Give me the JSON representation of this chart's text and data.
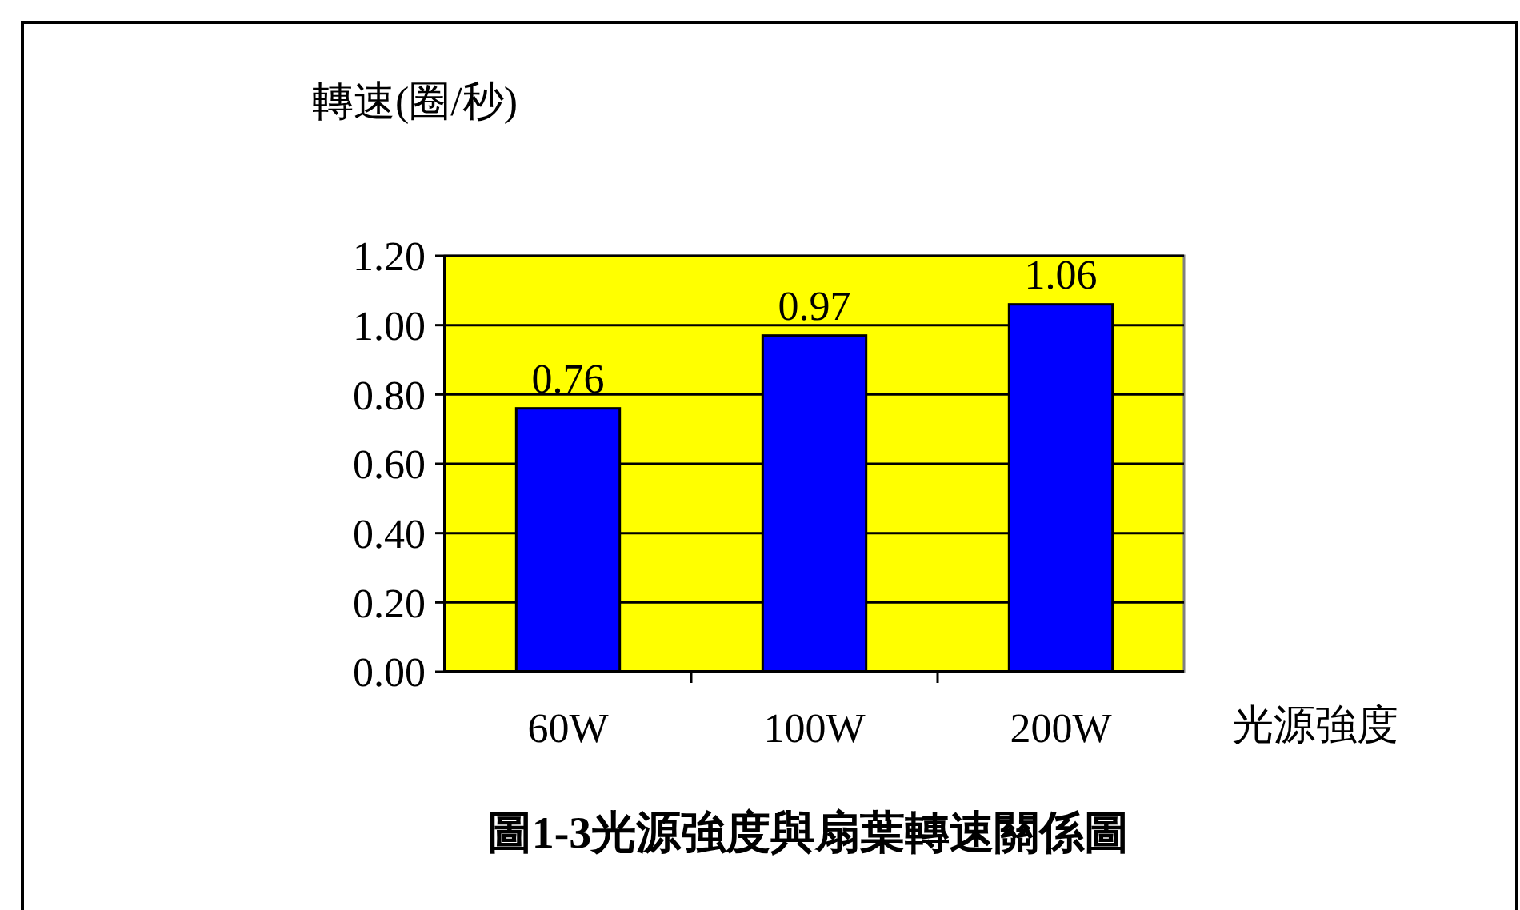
{
  "chart_data": {
    "type": "bar",
    "title": "圖1-3光源強度與扇葉轉速關係圖",
    "xlabel": "光源強度",
    "ylabel": "轉速(圈/秒)",
    "categories": [
      "60W",
      "100W",
      "200W"
    ],
    "values": [
      0.76,
      0.97,
      1.06
    ],
    "color": "#0000ff",
    "ylim": [
      0,
      1.2
    ],
    "yticks": [
      {
        "value": 0,
        "label": "0.00"
      },
      {
        "value": 0.2,
        "label": "0.20"
      },
      {
        "value": 0.4,
        "label": "0.40"
      },
      {
        "value": 0.6,
        "label": "0.60"
      },
      {
        "value": 0.8,
        "label": "0.80"
      },
      {
        "value": 1,
        "label": "1.00"
      },
      {
        "value": 1.2,
        "label": "1.20"
      }
    ],
    "grid": "y",
    "data_labels": true
  }
}
